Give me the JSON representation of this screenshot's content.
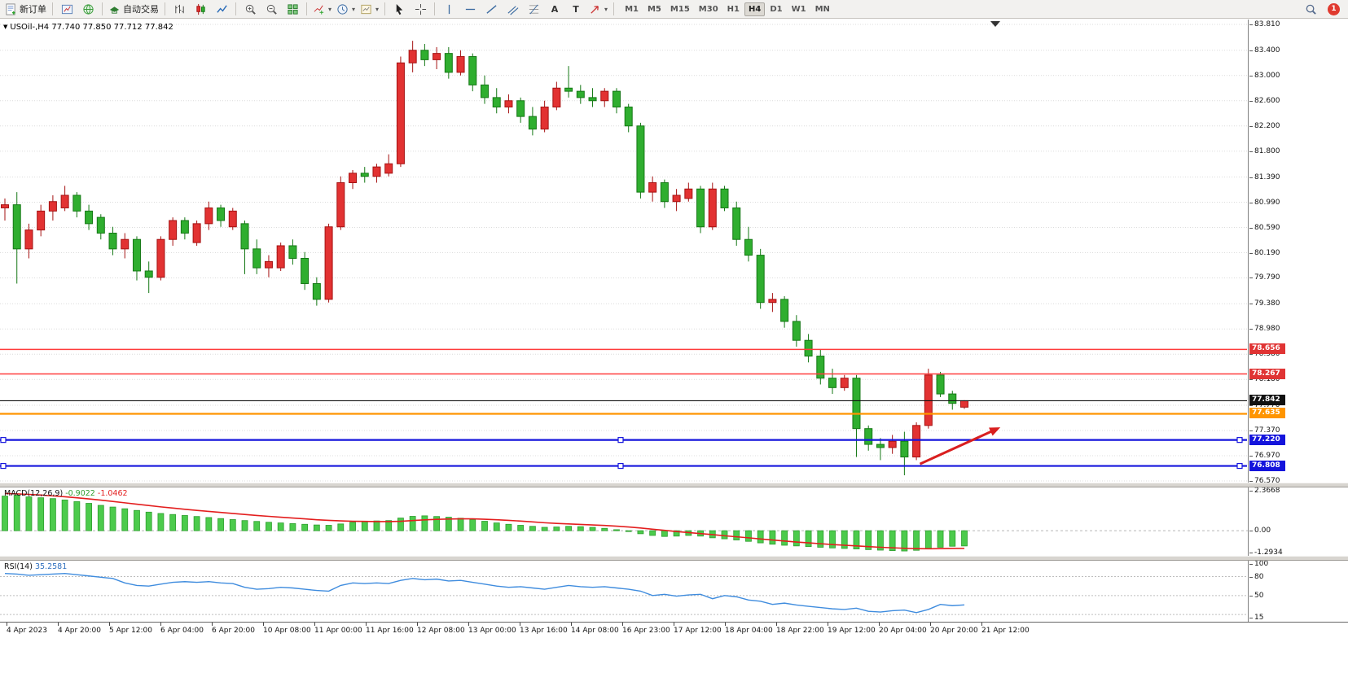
{
  "toolbar": {
    "new_order_label": "新订单",
    "auto_trading_label": "自动交易",
    "timeframes": [
      "M1",
      "M5",
      "M15",
      "M30",
      "H1",
      "H4",
      "D1",
      "W1",
      "MN"
    ],
    "active_timeframe": "H4",
    "notification_count": "1"
  },
  "chart": {
    "symbol": "USOil-",
    "period": "H4"
  },
  "chart_data": {
    "type": "candlestick",
    "title": "USOil-,H4 77.740 77.850 77.712 77.842",
    "ohlc": {
      "open": "77.740",
      "high": "77.850",
      "low": "77.712",
      "close": "77.842"
    },
    "ylim": [
      76.57,
      83.81
    ],
    "price_ticks": [
      "83.810",
      "83.400",
      "83.000",
      "82.600",
      "82.200",
      "81.800",
      "81.390",
      "80.990",
      "80.590",
      "80.190",
      "79.790",
      "79.380",
      "78.980",
      "78.580",
      "78.180",
      "77.770",
      "77.370",
      "76.970",
      "76.570"
    ],
    "time_labels": [
      "4 Apr 2023",
      "4 Apr 20:00",
      "5 Apr 12:00",
      "6 Apr 04:00",
      "6 Apr 20:00",
      "10 Apr 08:00",
      "11 Apr 00:00",
      "11 Apr 16:00",
      "12 Apr 08:00",
      "13 Apr 00:00",
      "13 Apr 16:00",
      "14 Apr 08:00",
      "16 Apr 23:00",
      "17 Apr 12:00",
      "18 Apr 04:00",
      "18 Apr 22:00",
      "19 Apr 12:00",
      "20 Apr 04:00",
      "20 Apr 20:00",
      "21 Apr 12:00"
    ],
    "colors": {
      "up_fill": "#E23232",
      "up_edge": "#A51212",
      "down_fill": "#2FAE2F",
      "down_edge": "#157815",
      "grid": "#DCDCDC",
      "bg": "#FFFFFF"
    },
    "candles": [
      [
        80.9,
        81.05,
        80.7,
        80.95
      ],
      [
        80.95,
        81.15,
        79.7,
        80.25
      ],
      [
        80.25,
        80.65,
        80.1,
        80.55
      ],
      [
        80.55,
        80.95,
        80.45,
        80.85
      ],
      [
        80.85,
        81.1,
        80.7,
        81.0
      ],
      [
        80.9,
        81.25,
        80.85,
        81.1
      ],
      [
        81.1,
        81.15,
        80.75,
        80.85
      ],
      [
        80.85,
        80.95,
        80.55,
        80.65
      ],
      [
        80.75,
        80.8,
        80.4,
        80.5
      ],
      [
        80.5,
        80.6,
        80.15,
        80.25
      ],
      [
        80.25,
        80.5,
        80.1,
        80.4
      ],
      [
        80.4,
        80.45,
        79.75,
        79.9
      ],
      [
        79.9,
        80.05,
        79.55,
        79.8
      ],
      [
        79.8,
        80.45,
        79.75,
        80.4
      ],
      [
        80.4,
        80.75,
        80.3,
        80.7
      ],
      [
        80.7,
        80.75,
        80.4,
        80.5
      ],
      [
        80.35,
        80.7,
        80.3,
        80.65
      ],
      [
        80.65,
        81.0,
        80.55,
        80.9
      ],
      [
        80.9,
        80.95,
        80.6,
        80.7
      ],
      [
        80.6,
        80.9,
        80.55,
        80.85
      ],
      [
        80.65,
        80.7,
        79.85,
        80.25
      ],
      [
        80.25,
        80.4,
        79.85,
        79.95
      ],
      [
        79.95,
        80.15,
        79.8,
        80.05
      ],
      [
        79.95,
        80.35,
        79.9,
        80.3
      ],
      [
        80.3,
        80.4,
        80.0,
        80.1
      ],
      [
        80.1,
        80.2,
        79.6,
        79.7
      ],
      [
        79.7,
        79.8,
        79.35,
        79.45
      ],
      [
        79.45,
        80.65,
        79.4,
        80.6
      ],
      [
        80.6,
        81.4,
        80.55,
        81.3
      ],
      [
        81.3,
        81.5,
        81.2,
        81.45
      ],
      [
        81.45,
        81.55,
        81.3,
        81.4
      ],
      [
        81.4,
        81.6,
        81.3,
        81.55
      ],
      [
        81.45,
        81.75,
        81.4,
        81.6
      ],
      [
        81.6,
        83.3,
        81.55,
        83.2
      ],
      [
        83.2,
        83.55,
        83.05,
        83.4
      ],
      [
        83.4,
        83.5,
        83.15,
        83.25
      ],
      [
        83.25,
        83.45,
        83.1,
        83.35
      ],
      [
        83.35,
        83.45,
        82.95,
        83.05
      ],
      [
        83.05,
        83.4,
        83.0,
        83.3
      ],
      [
        83.3,
        83.35,
        82.75,
        82.85
      ],
      [
        82.85,
        83.0,
        82.55,
        82.65
      ],
      [
        82.65,
        82.8,
        82.4,
        82.5
      ],
      [
        82.5,
        82.7,
        82.4,
        82.6
      ],
      [
        82.6,
        82.65,
        82.25,
        82.35
      ],
      [
        82.35,
        82.5,
        82.05,
        82.15
      ],
      [
        82.15,
        82.6,
        82.1,
        82.5
      ],
      [
        82.5,
        82.9,
        82.45,
        82.8
      ],
      [
        82.8,
        83.15,
        82.65,
        82.75
      ],
      [
        82.75,
        82.85,
        82.55,
        82.65
      ],
      [
        82.65,
        82.8,
        82.5,
        82.6
      ],
      [
        82.6,
        82.8,
        82.5,
        82.75
      ],
      [
        82.75,
        82.8,
        82.4,
        82.5
      ],
      [
        82.5,
        82.55,
        82.1,
        82.2
      ],
      [
        82.2,
        82.25,
        81.05,
        81.15
      ],
      [
        81.15,
        81.4,
        81.0,
        81.3
      ],
      [
        81.3,
        81.35,
        80.9,
        81.0
      ],
      [
        81.0,
        81.2,
        80.85,
        81.1
      ],
      [
        81.05,
        81.3,
        81.0,
        81.2
      ],
      [
        81.2,
        81.25,
        80.5,
        80.6
      ],
      [
        80.6,
        81.3,
        80.55,
        81.2
      ],
      [
        81.2,
        81.25,
        80.85,
        80.9
      ],
      [
        80.9,
        81.0,
        80.3,
        80.4
      ],
      [
        80.4,
        80.6,
        80.05,
        80.15
      ],
      [
        80.15,
        80.25,
        79.3,
        79.4
      ],
      [
        79.4,
        79.55,
        79.25,
        79.45
      ],
      [
        79.45,
        79.5,
        79.0,
        79.1
      ],
      [
        79.1,
        79.2,
        78.7,
        78.8
      ],
      [
        78.8,
        78.9,
        78.45,
        78.55
      ],
      [
        78.55,
        78.65,
        78.1,
        78.2
      ],
      [
        78.2,
        78.35,
        77.95,
        78.05
      ],
      [
        78.05,
        78.25,
        78.0,
        78.2
      ],
      [
        78.2,
        78.25,
        76.95,
        77.4
      ],
      [
        77.4,
        77.45,
        77.05,
        77.15
      ],
      [
        77.15,
        77.25,
        76.9,
        77.1
      ],
      [
        77.1,
        77.3,
        77.0,
        77.2
      ],
      [
        77.2,
        77.35,
        76.66,
        76.95
      ],
      [
        76.95,
        77.5,
        76.9,
        77.45
      ],
      [
        77.45,
        78.35,
        77.4,
        78.25
      ],
      [
        78.25,
        78.3,
        77.9,
        77.95
      ],
      [
        77.95,
        78.0,
        77.7,
        77.8
      ],
      [
        77.74,
        77.85,
        77.712,
        77.842
      ]
    ],
    "hlines": [
      {
        "price": 78.656,
        "color": "#FF3B3B",
        "width": 1.6,
        "label": "78.656",
        "badge_bg": "#E03434",
        "handles": false
      },
      {
        "price": 78.267,
        "color": "#FF3B3B",
        "width": 1.6,
        "label": "78.267",
        "badge_bg": "#E03434",
        "handles": false
      },
      {
        "price": 77.842,
        "color": "#111111",
        "width": 1.2,
        "label": "77.842",
        "badge_bg": "#111111",
        "handles": false
      },
      {
        "price": 77.635,
        "color": "#FF9500",
        "width": 2.2,
        "label": "77.635",
        "badge_bg": "#FF9500",
        "handles": false
      },
      {
        "price": 77.22,
        "color": "#1414DC",
        "width": 2.2,
        "label": "77.220",
        "badge_bg": "#1414DC",
        "handles": true
      },
      {
        "price": 76.808,
        "color": "#1414DC",
        "width": 2.2,
        "label": "76.808",
        "badge_bg": "#1414DC",
        "handles": true
      }
    ],
    "arrow": {
      "from_candle": 76.3,
      "from_price": 76.84,
      "to_candle": 83.0,
      "to_price": 77.42,
      "color": "#D91F1F",
      "width": 3
    },
    "shift_marker_x": 1222,
    "macd": {
      "label_name": "MACD(12,26,9)",
      "label_v1": "-0.9022",
      "label_v2": "-1.0462",
      "axis_top": "2.3668",
      "axis_zero": "0.00",
      "axis_bottom": "-1.2934",
      "ylim": [
        -1.2934,
        2.3668
      ],
      "hist_fill": "#4CCB4C",
      "hist_edge": "#2E9E2E",
      "signal_color": "#E31E1E",
      "histogram": [
        2.05,
        2.1,
        2.0,
        1.95,
        1.9,
        1.82,
        1.72,
        1.62,
        1.5,
        1.4,
        1.3,
        1.2,
        1.1,
        1.02,
        0.96,
        0.9,
        0.84,
        0.78,
        0.72,
        0.66,
        0.6,
        0.55,
        0.5,
        0.46,
        0.42,
        0.38,
        0.34,
        0.32,
        0.4,
        0.5,
        0.55,
        0.58,
        0.6,
        0.75,
        0.85,
        0.88,
        0.84,
        0.8,
        0.74,
        0.66,
        0.56,
        0.46,
        0.38,
        0.32,
        0.26,
        0.2,
        0.22,
        0.26,
        0.24,
        0.2,
        0.14,
        0.06,
        -0.05,
        -0.18,
        -0.28,
        -0.34,
        -0.32,
        -0.28,
        -0.32,
        -0.42,
        -0.48,
        -0.55,
        -0.63,
        -0.72,
        -0.8,
        -0.86,
        -0.9,
        -0.94,
        -0.98,
        -1.02,
        -1.05,
        -1.08,
        -1.12,
        -1.15,
        -1.18,
        -1.2,
        -1.16,
        -1.08,
        -0.98,
        -0.92,
        -0.9022
      ],
      "signal": [
        2.2,
        2.18,
        2.15,
        2.11,
        2.06,
        2.01,
        1.95,
        1.88,
        1.81,
        1.73,
        1.65,
        1.57,
        1.49,
        1.41,
        1.34,
        1.27,
        1.2,
        1.14,
        1.08,
        1.02,
        0.96,
        0.9,
        0.85,
        0.8,
        0.75,
        0.7,
        0.65,
        0.61,
        0.58,
        0.56,
        0.55,
        0.54,
        0.54,
        0.56,
        0.6,
        0.64,
        0.67,
        0.69,
        0.7,
        0.7,
        0.68,
        0.65,
        0.61,
        0.57,
        0.52,
        0.47,
        0.43,
        0.4,
        0.37,
        0.34,
        0.31,
        0.27,
        0.22,
        0.16,
        0.09,
        0.02,
        -0.05,
        -0.11,
        -0.17,
        -0.23,
        -0.3,
        -0.36,
        -0.42,
        -0.49,
        -0.55,
        -0.61,
        -0.67,
        -0.72,
        -0.77,
        -0.82,
        -0.86,
        -0.9,
        -0.94,
        -0.98,
        -1.01,
        -1.04,
        -1.06,
        -1.07,
        -1.06,
        -1.05,
        -1.0462
      ]
    },
    "rsi": {
      "label_name": "RSI(14)",
      "label_value": "35.2581",
      "axis_labels": [
        "100",
        "80",
        "50",
        "15"
      ],
      "levels": [
        80,
        50,
        20
      ],
      "ylim": [
        15,
        100
      ],
      "line_color": "#3F8CDE",
      "values": [
        85,
        84,
        82,
        83,
        84,
        85,
        83,
        81,
        79,
        77,
        70,
        66,
        65,
        68,
        71,
        72,
        71,
        72,
        70,
        69,
        63,
        60,
        61,
        63,
        62,
        60,
        58,
        57,
        66,
        70,
        69,
        70,
        69,
        74,
        77,
        75,
        76,
        73,
        74,
        71,
        68,
        65,
        63,
        64,
        62,
        60,
        63,
        66,
        64,
        63,
        64,
        62,
        60,
        57,
        50,
        52,
        49,
        51,
        52,
        45,
        50,
        48,
        43,
        41,
        36,
        38,
        35,
        33,
        31,
        29,
        28,
        30,
        25,
        24,
        26,
        27,
        23,
        28,
        36,
        34,
        35.2581
      ]
    }
  }
}
